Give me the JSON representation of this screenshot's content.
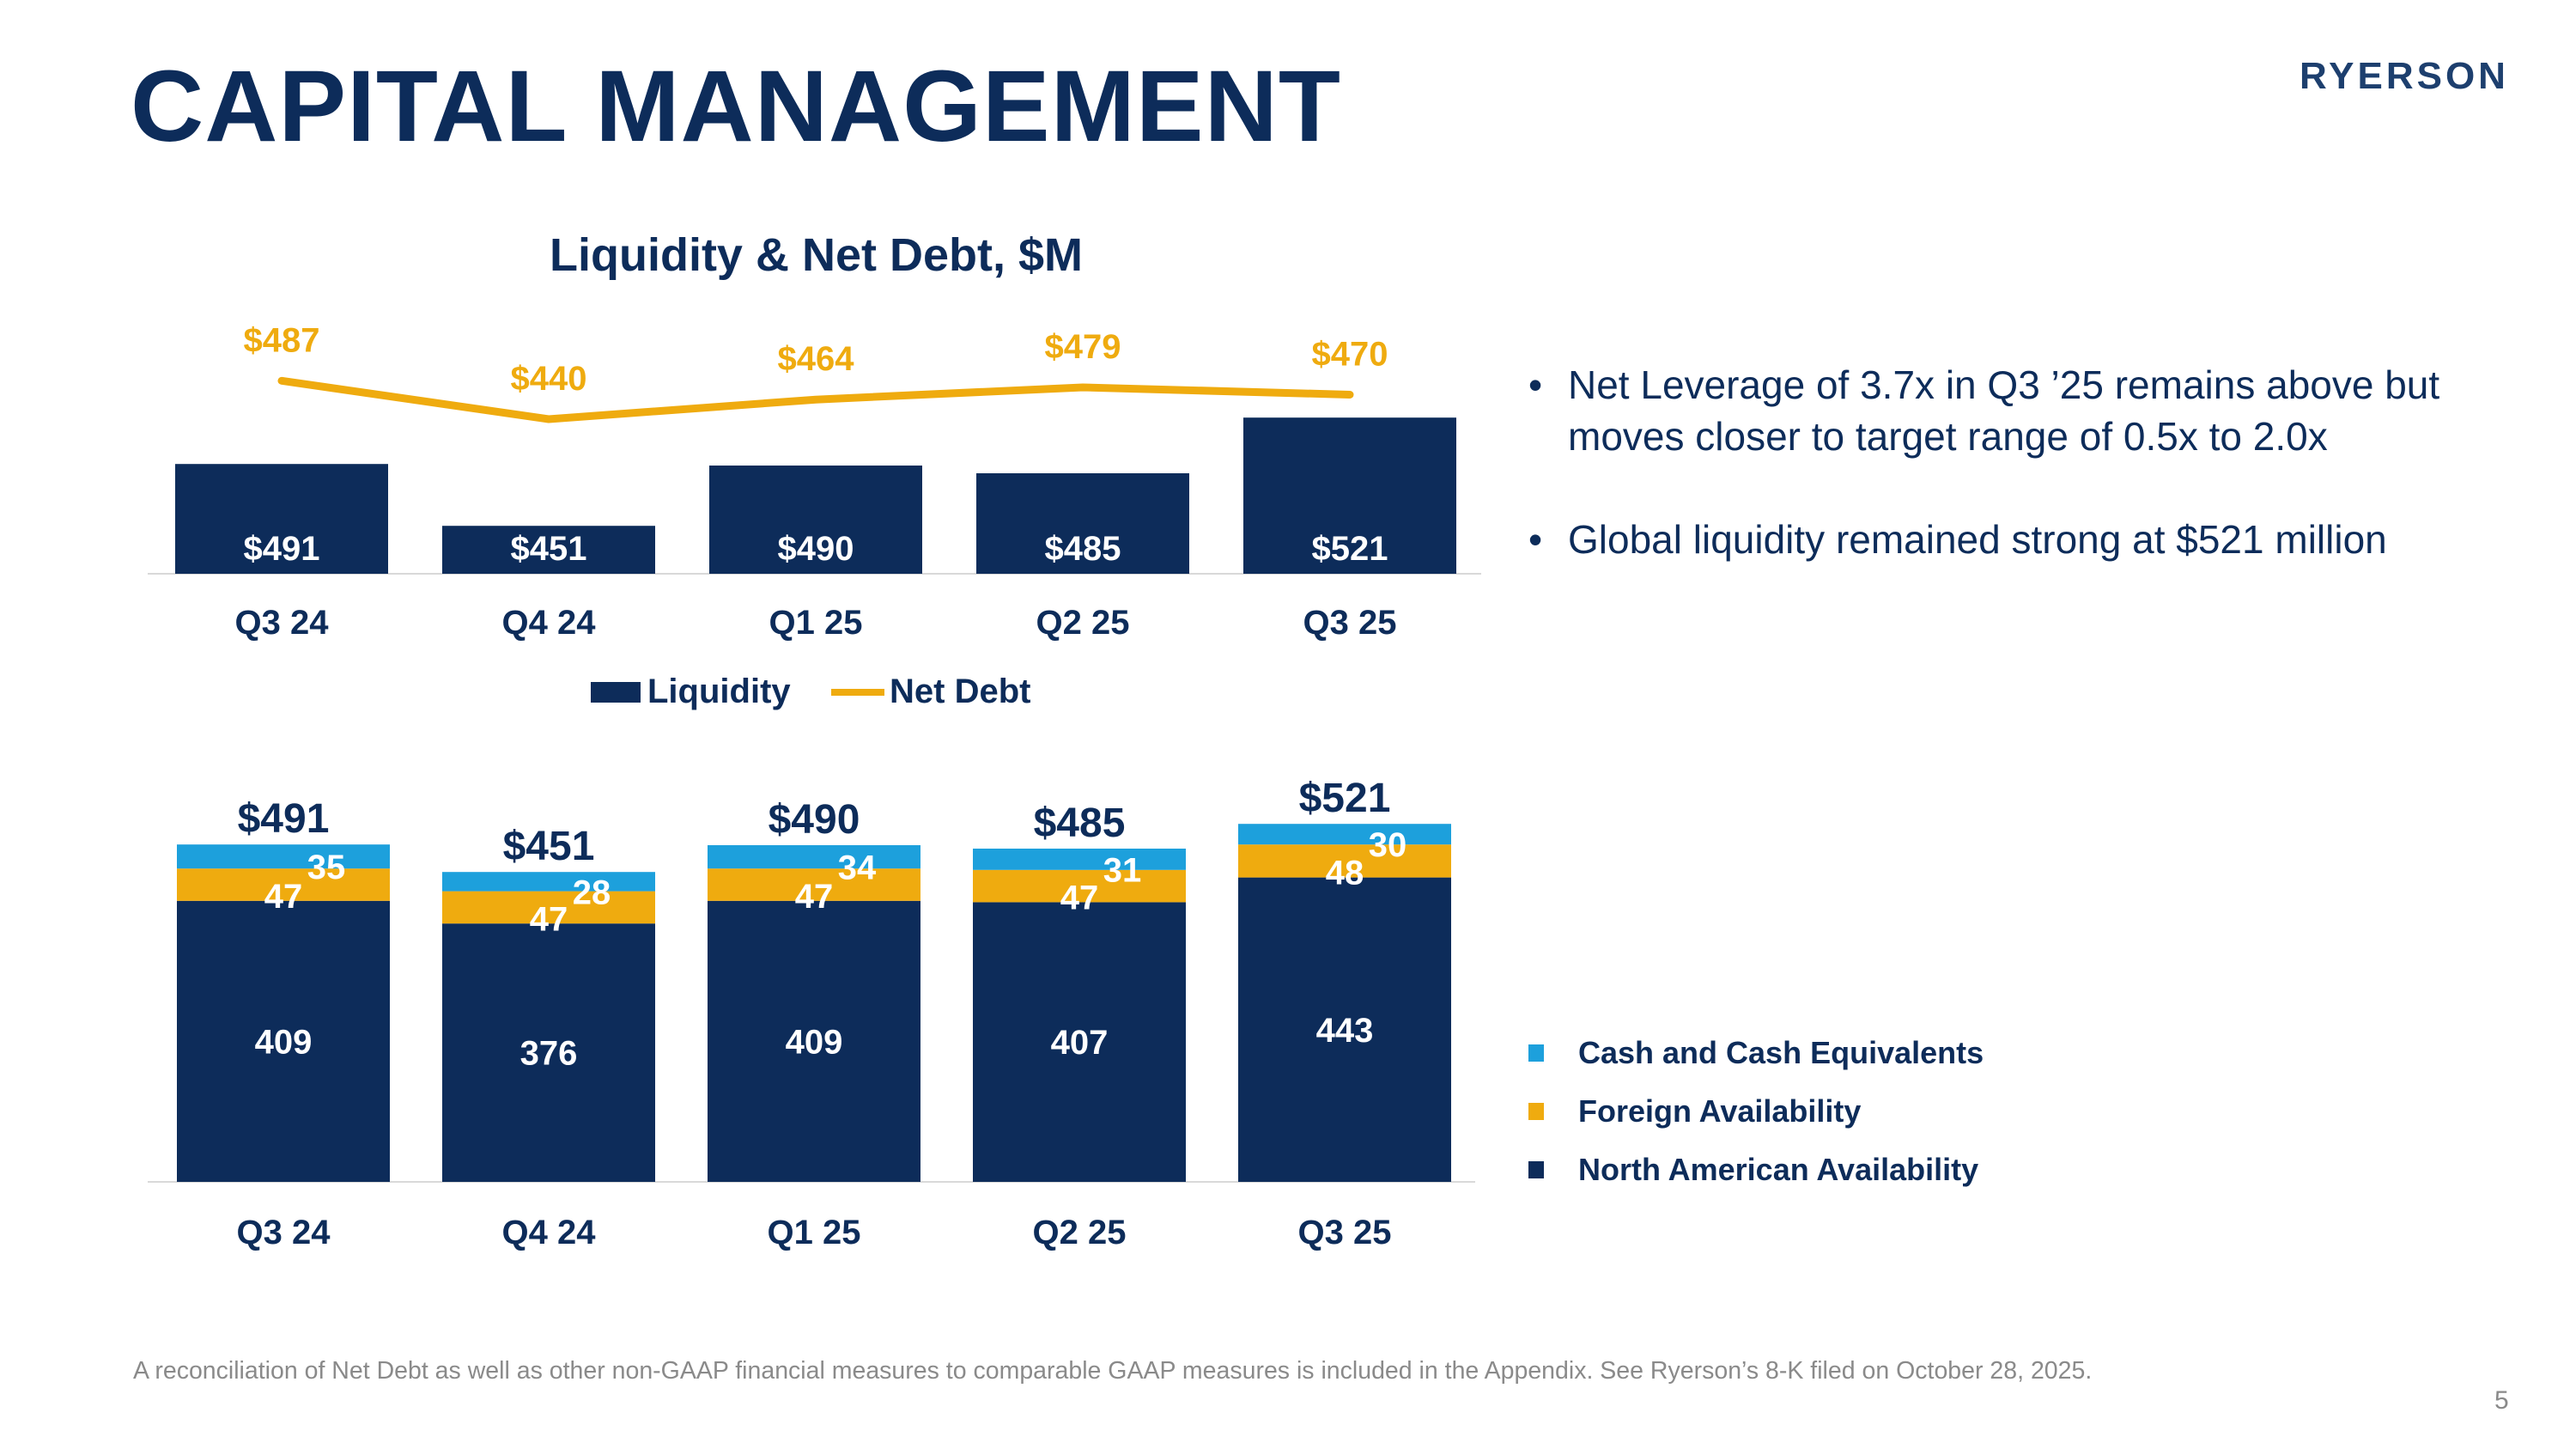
{
  "header": {
    "title": "CAPITAL MANAGEMENT",
    "logo_text": "RYERSON"
  },
  "chart_data": [
    {
      "type": "bar",
      "title": "Liquidity & Net Debt, $M",
      "categories": [
        "Q3 24",
        "Q4 24",
        "Q1 25",
        "Q2 25",
        "Q3 25"
      ],
      "series": [
        {
          "name": "Liquidity",
          "kind": "bar",
          "color": "#0d2c5a",
          "values": [
            491,
            451,
            490,
            485,
            521
          ],
          "labels": [
            "$491",
            "$451",
            "$490",
            "$485",
            "$521"
          ]
        },
        {
          "name": "Net Debt",
          "kind": "line",
          "color": "#efab0f",
          "values": [
            487,
            440,
            464,
            479,
            470
          ],
          "labels": [
            "$487",
            "$440",
            "$464",
            "$479",
            "$470"
          ]
        }
      ],
      "legend_position": "bottom",
      "grid": false
    },
    {
      "type": "bar",
      "stacked": true,
      "categories": [
        "Q3 24",
        "Q4 24",
        "Q1 25",
        "Q2 25",
        "Q3 25"
      ],
      "totals": [
        "$491",
        "$451",
        "$490",
        "$485",
        "$521"
      ],
      "series": [
        {
          "name": "North American Availability",
          "color": "#0d2c5a",
          "values": [
            409,
            376,
            409,
            407,
            443
          ]
        },
        {
          "name": "Foreign Availability",
          "color": "#efab0f",
          "values": [
            47,
            47,
            47,
            47,
            48
          ]
        },
        {
          "name": "Cash and Cash Equivalents",
          "color": "#1da0dc",
          "values": [
            35,
            28,
            34,
            31,
            30
          ]
        }
      ],
      "legend_position": "right",
      "grid": false
    }
  ],
  "bullets": [
    "Net Leverage of 3.7x in Q3 ’25 remains above but moves closer to target range of 0.5x to 2.0x",
    "Global liquidity remained strong at $521 million"
  ],
  "footnote": "A reconciliation of Net Debt as well as other non-GAAP financial measures to comparable GAAP measures is included in the Appendix. See Ryerson’s 8-K filed on October 28, 2025.",
  "page_number": "5"
}
